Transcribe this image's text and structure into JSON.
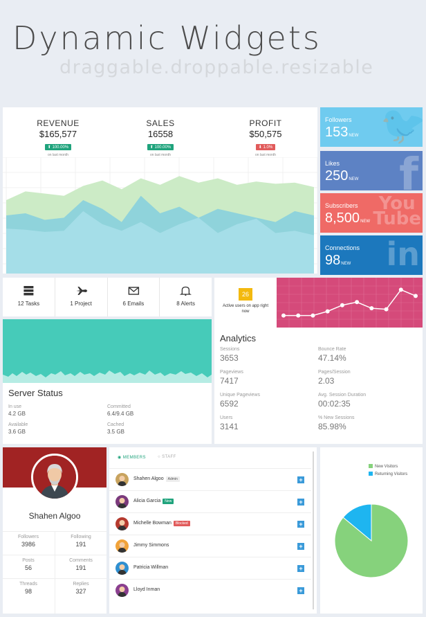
{
  "hero": {
    "title": "Dynamic Widgets",
    "subtitle": "draggable.droppable.resizable"
  },
  "kpis": [
    {
      "label": "REVENUE",
      "value": "$165,577",
      "badge": "100.00%",
      "caption": "on last month",
      "trend": "up"
    },
    {
      "label": "SALES",
      "value": "16558",
      "badge": "100.00%",
      "caption": "on last month",
      "trend": "up"
    },
    {
      "label": "PROFIT",
      "value": "$50,575",
      "badge": "1.0%",
      "caption": "on last month",
      "trend": "down"
    }
  ],
  "social": [
    {
      "label": "Followers",
      "value": "153",
      "suffix": "NEW",
      "color": "#6fcbef",
      "icon": "twitter-icon"
    },
    {
      "label": "Likes",
      "value": "250",
      "suffix": "NEW",
      "color": "#5d82c4",
      "icon": "facebook-icon"
    },
    {
      "label": "Subscribers",
      "value": "8,500",
      "suffix": "NEW",
      "color": "#ef6a66",
      "icon": "youtube-icon"
    },
    {
      "label": "Connections",
      "value": "98",
      "suffix": "NEW",
      "color": "#1c78bd",
      "icon": "linkedin-icon"
    }
  ],
  "tasks": [
    {
      "label": "12 Tasks",
      "icon": "server-icon"
    },
    {
      "label": "1 Project",
      "icon": "plane-icon"
    },
    {
      "label": "6 Emails",
      "icon": "envelope-icon"
    },
    {
      "label": "8 Alerts",
      "icon": "bell-icon"
    }
  ],
  "server": {
    "title": "Server Status",
    "stats": [
      {
        "label": "In use",
        "value": "4.2 GB"
      },
      {
        "label": "Committed",
        "value": "6.4/9.4 GB"
      },
      {
        "label": "Available",
        "value": "3.6 GB"
      },
      {
        "label": "Cached",
        "value": "3.5 GB"
      }
    ]
  },
  "analytics": {
    "active_users": "26",
    "active_caption": "Active users on app right now",
    "title": "Analytics",
    "stats": [
      {
        "label": "Sessions",
        "value": "3653"
      },
      {
        "label": "Bounce Rate",
        "value": "47.14%"
      },
      {
        "label": "Pageviews",
        "value": "7417"
      },
      {
        "label": "Pages/Session",
        "value": "2.03"
      },
      {
        "label": "Unique Pageviews",
        "value": "6592"
      },
      {
        "label": "Avg. Session Duration",
        "value": "00:02:35"
      },
      {
        "label": "Users",
        "value": "3141"
      },
      {
        "label": "% New Sessions",
        "value": "85.98%"
      }
    ]
  },
  "profile": {
    "name": "Shahen Algoo",
    "stats": [
      {
        "label": "Followers",
        "value": "3986"
      },
      {
        "label": "Following",
        "value": "191"
      },
      {
        "label": "Posts",
        "value": "56"
      },
      {
        "label": "Comments",
        "value": "191"
      },
      {
        "label": "Threads",
        "value": "98"
      },
      {
        "label": "Replies",
        "value": "327"
      }
    ]
  },
  "members": {
    "tabs": [
      "MEMBERS",
      "STAFF"
    ],
    "items": [
      {
        "name": "Shahen Algoo",
        "badge": "Admin",
        "badge_color": "#eeeeee",
        "badge_text": "#555555",
        "avatar_color": "#c8a35e"
      },
      {
        "name": "Alicia Garcia",
        "badge": "New",
        "badge_color": "#1fa37c",
        "badge_text": "#ffffff",
        "avatar_color": "#7b3a7c"
      },
      {
        "name": "Michelle Bowman",
        "badge": "Blocked",
        "badge_color": "#e15b5b",
        "badge_text": "#ffffff",
        "avatar_color": "#b53a2e"
      },
      {
        "name": "Jimmy Simmons",
        "badge": "",
        "badge_color": "",
        "badge_text": "",
        "avatar_color": "#f1a33a"
      },
      {
        "name": "Patricia Willman",
        "badge": "",
        "badge_color": "",
        "badge_text": "",
        "avatar_color": "#2f8fd0"
      },
      {
        "name": "Lloyd Inman",
        "badge": "",
        "badge_color": "",
        "badge_text": "",
        "avatar_color": "#8a3f8f"
      }
    ]
  },
  "pie": {
    "legend": [
      {
        "label": "New Visitors",
        "color": "#86d27c",
        "value": 86
      },
      {
        "label": "Returning Visitors",
        "color": "#1eb5f0",
        "value": 14
      }
    ]
  },
  "chart_data": [
    {
      "type": "area",
      "series": [
        {
          "values": [
            62,
            70,
            68,
            66,
            75,
            80,
            72,
            82,
            76,
            84,
            78,
            82,
            76,
            79,
            77,
            78,
            74
          ]
        },
        {
          "values": [
            48,
            50,
            44,
            46,
            62,
            54,
            42,
            66,
            50,
            56,
            46,
            54,
            50,
            46,
            42,
            52,
            48
          ]
        },
        {
          "values": [
            36,
            35,
            33,
            34,
            52,
            40,
            34,
            42,
            32,
            40,
            46,
            32,
            40,
            45,
            32,
            34,
            30
          ]
        }
      ]
    },
    {
      "type": "line",
      "values": [
        10,
        10,
        10,
        18,
        30,
        36,
        24,
        22,
        60,
        48
      ]
    }
  ]
}
